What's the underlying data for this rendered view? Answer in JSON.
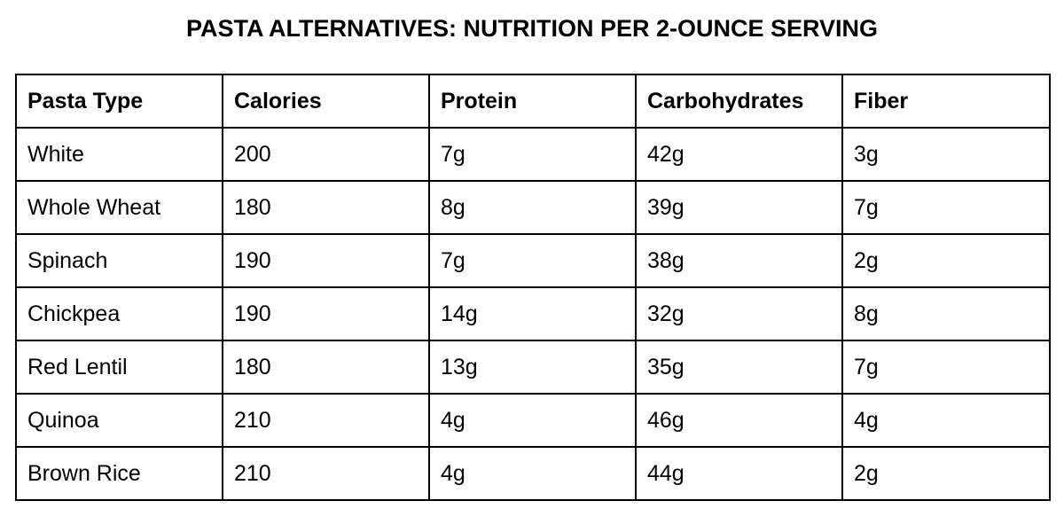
{
  "title": "PASTA ALTERNATIVES: NUTRITION PER 2-OUNCE SERVING",
  "table": {
    "headers": [
      "Pasta Type",
      "Calories",
      "Protein",
      "Carbohydrates",
      "Fiber"
    ],
    "rows": [
      [
        "White",
        "200",
        "7g",
        "42g",
        "3g"
      ],
      [
        "Whole Wheat",
        "180",
        "8g",
        "39g",
        "7g"
      ],
      [
        "Spinach",
        "190",
        "7g",
        "38g",
        "2g"
      ],
      [
        "Chickpea",
        "190",
        "14g",
        "32g",
        "8g"
      ],
      [
        "Red Lentil",
        "180",
        "13g",
        "35g",
        "7g"
      ],
      [
        "Quinoa",
        "210",
        "4g",
        "46g",
        "4g"
      ],
      [
        "Brown Rice",
        "210",
        "4g",
        "44g",
        "2g"
      ]
    ]
  }
}
